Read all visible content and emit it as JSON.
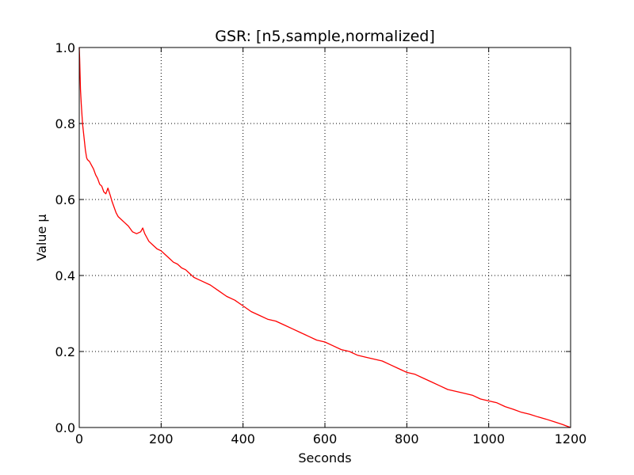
{
  "chart_data": {
    "type": "line",
    "title": "GSR: [n5,sample,normalized]",
    "xlabel": "Seconds",
    "ylabel": "Value μ",
    "xlim": [
      0,
      1200
    ],
    "ylim": [
      0.0,
      1.0
    ],
    "grid": true,
    "x_ticks": [
      0,
      200,
      400,
      600,
      800,
      1000,
      1200
    ],
    "y_ticks": [
      0.0,
      0.2,
      0.4,
      0.6,
      0.8,
      1.0
    ],
    "x_tick_labels": [
      "0",
      "200",
      "400",
      "600",
      "800",
      "1000",
      "1200"
    ],
    "y_tick_labels": [
      "0.0",
      "0.2",
      "0.4",
      "0.6",
      "0.8",
      "1.0"
    ],
    "series": [
      {
        "color": "#ff0000",
        "x": [
          0,
          1,
          2,
          3,
          5,
          8,
          12,
          15,
          18,
          20,
          25,
          30,
          35,
          40,
          45,
          50,
          55,
          60,
          65,
          70,
          73,
          76,
          80,
          85,
          90,
          95,
          100,
          110,
          120,
          130,
          140,
          150,
          155,
          160,
          165,
          170,
          180,
          190,
          200,
          210,
          220,
          230,
          240,
          250,
          260,
          270,
          280,
          290,
          300,
          320,
          340,
          360,
          380,
          400,
          420,
          440,
          460,
          480,
          500,
          520,
          540,
          550,
          560,
          580,
          600,
          620,
          640,
          660,
          680,
          700,
          720,
          740,
          760,
          780,
          800,
          820,
          840,
          860,
          880,
          900,
          920,
          940,
          960,
          980,
          1000,
          1020,
          1040,
          1060,
          1080,
          1100,
          1120,
          1140,
          1160,
          1180,
          1190,
          1200
        ],
        "y": [
          1.0,
          0.97,
          0.93,
          0.89,
          0.85,
          0.8,
          0.76,
          0.73,
          0.71,
          0.705,
          0.7,
          0.69,
          0.68,
          0.665,
          0.655,
          0.64,
          0.635,
          0.62,
          0.615,
          0.63,
          0.62,
          0.61,
          0.595,
          0.58,
          0.565,
          0.555,
          0.55,
          0.54,
          0.53,
          0.515,
          0.51,
          0.515,
          0.525,
          0.51,
          0.5,
          0.49,
          0.48,
          0.47,
          0.465,
          0.455,
          0.445,
          0.435,
          0.43,
          0.42,
          0.415,
          0.405,
          0.395,
          0.39,
          0.385,
          0.375,
          0.36,
          0.345,
          0.335,
          0.32,
          0.305,
          0.295,
          0.285,
          0.28,
          0.27,
          0.26,
          0.25,
          0.245,
          0.24,
          0.23,
          0.225,
          0.215,
          0.205,
          0.2,
          0.19,
          0.185,
          0.18,
          0.175,
          0.165,
          0.155,
          0.145,
          0.14,
          0.13,
          0.12,
          0.11,
          0.1,
          0.095,
          0.09,
          0.085,
          0.075,
          0.07,
          0.065,
          0.055,
          0.048,
          0.04,
          0.035,
          0.028,
          0.022,
          0.015,
          0.008,
          0.004,
          0.0
        ]
      }
    ]
  }
}
